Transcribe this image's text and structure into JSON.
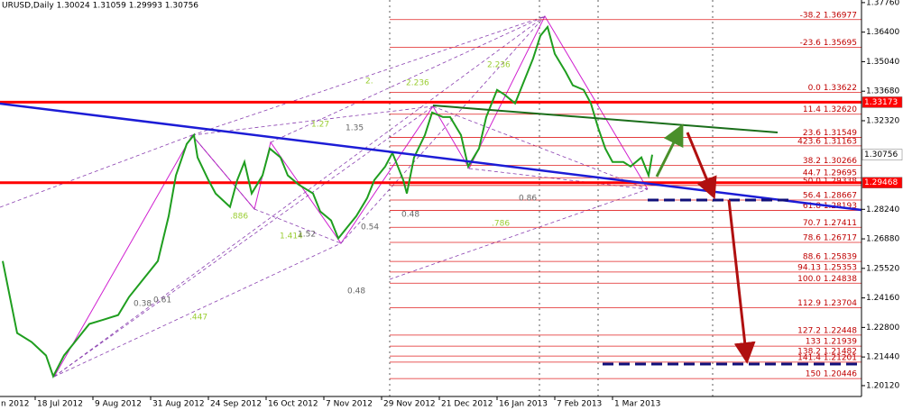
{
  "chart_data": {
    "type": "line",
    "title": "URUSD,Daily  1.30024 1.31059 1.29993 1.30756",
    "x": [
      1,
      3,
      5,
      9,
      13,
      15,
      18,
      21,
      25,
      29,
      33,
      36,
      40,
      44,
      47,
      49,
      52,
      54,
      55,
      58,
      60,
      64,
      66,
      68,
      70,
      73,
      75,
      78,
      80,
      83,
      87,
      89,
      92,
      94,
      97,
      99,
      102,
      104,
      107,
      109,
      112,
      113,
      115,
      118,
      120,
      123,
      125,
      128,
      130,
      133,
      135,
      138,
      140,
      143,
      145,
      148,
      150,
      152,
      154,
      157,
      159,
      162,
      164,
      166,
      168,
      170,
      173,
      175,
      178,
      180,
      181
    ],
    "series": [
      {
        "color": "#1f9e1f",
        "values": [
          1.2586,
          1.242,
          1.2254,
          1.2213,
          1.2151,
          1.2055,
          1.2151,
          1.2213,
          1.2296,
          1.2316,
          1.2337,
          1.242,
          1.2503,
          1.2586,
          1.2793,
          1.298,
          1.3125,
          1.3166,
          1.3063,
          1.2959,
          1.2897,
          1.2835,
          1.2959,
          1.3042,
          1.2897,
          1.298,
          1.3104,
          1.3063,
          1.298,
          1.2938,
          1.2897,
          1.2814,
          1.2773,
          1.269,
          1.2752,
          1.2793,
          1.2876,
          1.2959,
          1.3021,
          1.3084,
          1.2959,
          1.2897,
          1.3063,
          1.3166,
          1.327,
          1.3249,
          1.3249,
          1.3166,
          1.3021,
          1.3104,
          1.3249,
          1.3374,
          1.3353,
          1.3312,
          1.3395,
          1.3519,
          1.3623,
          1.3664,
          1.354,
          1.3457,
          1.3395,
          1.3374,
          1.3312,
          1.32,
          1.3104,
          1.3042,
          1.3042,
          1.3021,
          1.3063,
          1.298,
          1.30756
        ]
      }
    ],
    "xlim": [
      0,
      239
    ],
    "xticks": [
      {
        "value": 0,
        "label": "n 2012"
      },
      {
        "value": 10,
        "label": "18 Jul 2012"
      },
      {
        "value": 26,
        "label": "9 Aug 2012"
      },
      {
        "value": 42,
        "label": "31 Aug 2012"
      },
      {
        "value": 58,
        "label": "24 Sep 2012"
      },
      {
        "value": 74,
        "label": "16 Oct 2012"
      },
      {
        "value": 90,
        "label": "7 Nov 2012"
      },
      {
        "value": 106,
        "label": "29 Nov 2012"
      },
      {
        "value": 122,
        "label": "21 Dec 2012"
      },
      {
        "value": 138,
        "label": "16 Jan 2013"
      },
      {
        "value": 154,
        "label": "7 Feb 2013"
      },
      {
        "value": 170,
        "label": "1 Mar 2013"
      }
    ],
    "ylim": [
      1.1962,
      1.3788
    ],
    "yticks": [
      {
        "value": 1.3776,
        "label": "1.37760"
      },
      {
        "value": 1.364,
        "label": "1.36400"
      },
      {
        "value": 1.3504,
        "label": "1.35040"
      },
      {
        "value": 1.3368,
        "label": "1.33680"
      },
      {
        "value": 1.3232,
        "label": "1.32320"
      },
      {
        "value": 1.2824,
        "label": "1.28240"
      },
      {
        "value": 1.2688,
        "label": "1.26880"
      },
      {
        "value": 1.2552,
        "label": "1.25520"
      },
      {
        "value": 1.2416,
        "label": "1.24160"
      },
      {
        "value": 1.228,
        "label": "1.22800"
      },
      {
        "value": 1.2144,
        "label": "1.21440"
      },
      {
        "value": 1.2012,
        "label": "1.20120"
      }
    ],
    "levels": [
      {
        "value": 1.36977,
        "label": "-38.2 1.36977"
      },
      {
        "value": 1.35695,
        "label": "-23.6 1.35695"
      },
      {
        "value": 1.33622,
        "label": "0.0 1.33622"
      },
      {
        "value": 1.3262,
        "label": "11.4 1.32620"
      },
      {
        "value": 1.31549,
        "label": "23.6 1.31549"
      },
      {
        "value": 1.31163,
        "label": "423.6 1.31163"
      },
      {
        "value": 1.30266,
        "label": "38.2 1.30266"
      },
      {
        "value": 1.29695,
        "label": "44.7 1.29695"
      },
      {
        "value": 1.29338,
        "label": "50.0 1.29338"
      },
      {
        "value": 1.28667,
        "label": "56.4 1.28667"
      },
      {
        "value": 1.28193,
        "label": "61.8 1.28193"
      },
      {
        "value": 1.27411,
        "label": "70.7 1.27411"
      },
      {
        "value": 1.26717,
        "label": "78.6 1.26717"
      },
      {
        "value": 1.25839,
        "label": "88.6 1.25839"
      },
      {
        "value": 1.25353,
        "label": "94.13 1.25353"
      },
      {
        "value": 1.24838,
        "label": "100.0 1.24838"
      },
      {
        "value": 1.23704,
        "label": "112.9 1.23704"
      },
      {
        "value": 1.22448,
        "label": "127.2 1.22448"
      },
      {
        "value": 1.21939,
        "label": "133 1.21939"
      },
      {
        "value": 1.21482,
        "label": "138.2 1.21482"
      },
      {
        "value": 1.21201,
        "label": "141.4 1.21201"
      },
      {
        "value": 1.20446,
        "label": "150 1.20446"
      }
    ],
    "price_markers": [
      1.33173,
      1.29468,
      1.30756
    ],
    "annotations": [
      "2.",
      "2.236",
      "1.35",
      "1.27",
      "2.236",
      "0.48",
      "0.48",
      "0.86",
      ".886",
      "1.414",
      "1.52",
      "0.54",
      ".447",
      "0.38",
      "0.61",
      ".786"
    ]
  }
}
